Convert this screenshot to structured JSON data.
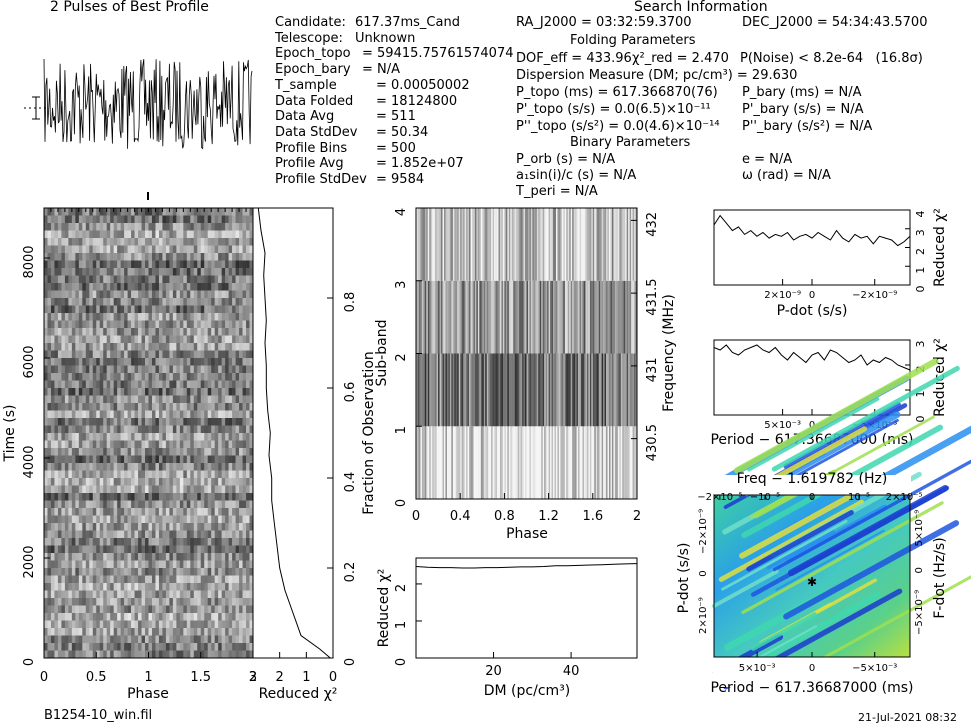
{
  "header": {
    "profile_title": "2 Pulses of Best Profile",
    "search_title": "Search Information",
    "folding_title": "Folding Parameters",
    "binary_title": "Binary Parameters"
  },
  "info_left": [
    {
      "label": "Candidate:",
      "value": "617.37ms_Cand"
    },
    {
      "label": "Telescope:",
      "value": "Unknown"
    },
    {
      "label": "Epoch_topo",
      "value": "= 59415.75761574074"
    },
    {
      "label": "Epoch_bary",
      "value": "= N/A"
    },
    {
      "label": "T_sample",
      "value": "= 0.00050002"
    },
    {
      "label": "Data Folded",
      "value": "= 18124800"
    },
    {
      "label": "Data Avg",
      "value": "= 511"
    },
    {
      "label": "Data StdDev",
      "value": "= 50.34"
    },
    {
      "label": "Profile Bins",
      "value": "= 500"
    },
    {
      "label": "Profile Avg",
      "value": "= 1.852e+07"
    },
    {
      "label": "Profile StdDev",
      "value": "= 9584"
    }
  ],
  "search_info": {
    "ra": "RA_J2000 = 03:32:59.3700",
    "dec": "DEC_J2000 = 54:34:43.5700",
    "dof": "DOF_eff = 433.96",
    "chi2": "χ²_red = 2.470",
    "pnoise": "P(Noise) < 8.2e-64   (16.8σ)",
    "dm": "Dispersion Measure (DM; pc/cm³) = 29.630",
    "ptopo": "P_topo (ms) = 617.366870(76)",
    "pbary": "P_bary (ms) = N/A",
    "pdtopo": "P'_topo (s/s) = 0.0(6.5)×10⁻¹¹",
    "pdbary": "P'_bary (s/s) = N/A",
    "pddtopo": "P''_topo (s/s²) = 0.0(4.6)×10⁻¹⁴",
    "pddbary": "P''_bary (s/s²) = N/A",
    "porb": "P_orb (s) = N/A",
    "ecc": "e = N/A",
    "asini": "a₁sin(i)/c (s) = N/A",
    "omega": "ω (rad) = N/A",
    "tperi": "T_peri = N/A"
  },
  "footer": {
    "filename": "B1254-10_win.fil",
    "timestamp": "21-Jul-2021 08:32"
  },
  "chart_data": [
    {
      "type": "line",
      "title": "2 Pulses of Best Profile",
      "x": "phase 0–2 (2 pulses)",
      "values_note": "noise-dominated profile"
    },
    {
      "type": "heatmap",
      "xlabel": "Phase",
      "ylabel": "Time (s)",
      "xlim": [
        0,
        3
      ],
      "ylim": [
        0,
        9000
      ],
      "xticks": [
        "0",
        "0.5",
        "1",
        "1.5",
        "2",
        "2.5",
        "3"
      ],
      "yticks": [
        "0",
        "2000",
        "4000",
        "6000",
        "8000"
      ]
    },
    {
      "type": "line",
      "xlabel": "Reduced χ²",
      "xlim": [
        0,
        3
      ],
      "ylabel": "Fraction of Observation",
      "xticks": [
        "3",
        "2",
        "1",
        "0"
      ],
      "yticks": [
        "0",
        "0.2",
        "0.4",
        "0.6",
        "0.8"
      ],
      "fraction": [
        0.0,
        0.02,
        0.05,
        0.1,
        0.15,
        0.2,
        0.25,
        0.3,
        0.35,
        0.4,
        0.45,
        0.5,
        0.55,
        0.6,
        0.65,
        0.7,
        0.75,
        0.8,
        0.85,
        0.9,
        0.95,
        1.0
      ],
      "values": [
        0.1,
        0.5,
        1.2,
        1.5,
        1.8,
        2.0,
        2.1,
        2.2,
        2.3,
        2.3,
        2.4,
        2.35,
        2.45,
        2.5,
        2.5,
        2.55,
        2.5,
        2.55,
        2.6,
        2.55,
        2.7,
        2.8
      ]
    },
    {
      "type": "heatmap",
      "xlabel": "Phase",
      "ylabel": "Sub-band",
      "y2label": "Frequency (MHz)",
      "xlim": [
        0,
        2
      ],
      "ylim": [
        0,
        4
      ],
      "xticks": [
        "0",
        "0.4",
        "0.8",
        "1.2",
        "1.6",
        "2"
      ],
      "yticks": [
        "0",
        "1",
        "2",
        "3",
        "4"
      ],
      "y2ticks": [
        "430.5",
        "431",
        "431.5",
        "432"
      ]
    },
    {
      "type": "line",
      "xlabel": "DM (pc/cm³)",
      "ylabel": "Reduced χ²",
      "xlim": [
        0,
        57
      ],
      "ylim": [
        0,
        2.7
      ],
      "xticks": [
        "20",
        "40"
      ],
      "yticks": [
        "0",
        "1",
        "2"
      ],
      "x": [
        0,
        3,
        6,
        9,
        12,
        15,
        18,
        21,
        24,
        27,
        30,
        33,
        36,
        39,
        42,
        45,
        48,
        51,
        54,
        57
      ],
      "values": [
        2.47,
        2.45,
        2.44,
        2.44,
        2.43,
        2.43,
        2.44,
        2.44,
        2.45,
        2.46,
        2.46,
        2.47,
        2.49,
        2.49,
        2.5,
        2.51,
        2.52,
        2.53,
        2.54,
        2.55
      ]
    },
    {
      "type": "line",
      "xlabel": "P-dot (s/s)",
      "ylabel": "Reduced χ²",
      "ylim": [
        0,
        4
      ],
      "xticks": [
        "2×10⁻⁹",
        "0",
        "−2×10⁻⁹"
      ],
      "yticks": [
        "0",
        "1",
        "2",
        "3",
        "4"
      ],
      "values": [
        3.2,
        3.7,
        3.3,
        2.9,
        3.1,
        2.7,
        2.9,
        2.6,
        2.8,
        2.5,
        2.7,
        2.6,
        2.8,
        2.4,
        2.6,
        2.7,
        2.5,
        2.8,
        2.6,
        2.4,
        2.9,
        2.5,
        2.3,
        2.7,
        2.5,
        2.6,
        2.2,
        2.6,
        2.5,
        2.4,
        2.1,
        2.3,
        2.6
      ]
    },
    {
      "type": "line",
      "xlabel": "Period − 617.36687000 (ms)",
      "ylabel": "Reduced χ²",
      "ylim": [
        0,
        3
      ],
      "xticks": [
        "5×10⁻³",
        "0",
        "−5×10⁻³"
      ],
      "yticks": [
        "0",
        "1",
        "2",
        "3"
      ],
      "values": [
        2.7,
        2.6,
        2.8,
        2.5,
        2.4,
        2.6,
        2.7,
        2.8,
        2.6,
        2.5,
        2.7,
        2.4,
        2.2,
        2.5,
        2.3,
        2.1,
        2.4,
        2.5,
        2.2,
        2.6,
        2.5,
        2.3,
        2.1,
        2.2,
        2.4,
        2.0,
        2.2,
        2.1,
        2.3,
        2.2,
        2.0,
        1.9,
        1.8
      ]
    },
    {
      "type": "heatmap",
      "title": "Freq − 1.619782 (Hz)",
      "xlabel": "Period − 617.36687000 (ms)",
      "ylabel": "P-dot (s/s)",
      "y2label": "F-dot (Hz/s)",
      "xticks": [
        "5×10⁻³",
        "0",
        "−5×10⁻³"
      ],
      "x2ticks": [
        "−2×10⁻⁵",
        "−10⁻⁵",
        "0",
        "10⁻⁵",
        "2×10⁻⁵"
      ],
      "yticks": [
        "2×10⁻⁹",
        "0",
        "−2×10⁻⁹"
      ],
      "y2ticks": [
        "−5×10⁻⁹",
        "0",
        "5×10⁻⁹"
      ]
    }
  ]
}
